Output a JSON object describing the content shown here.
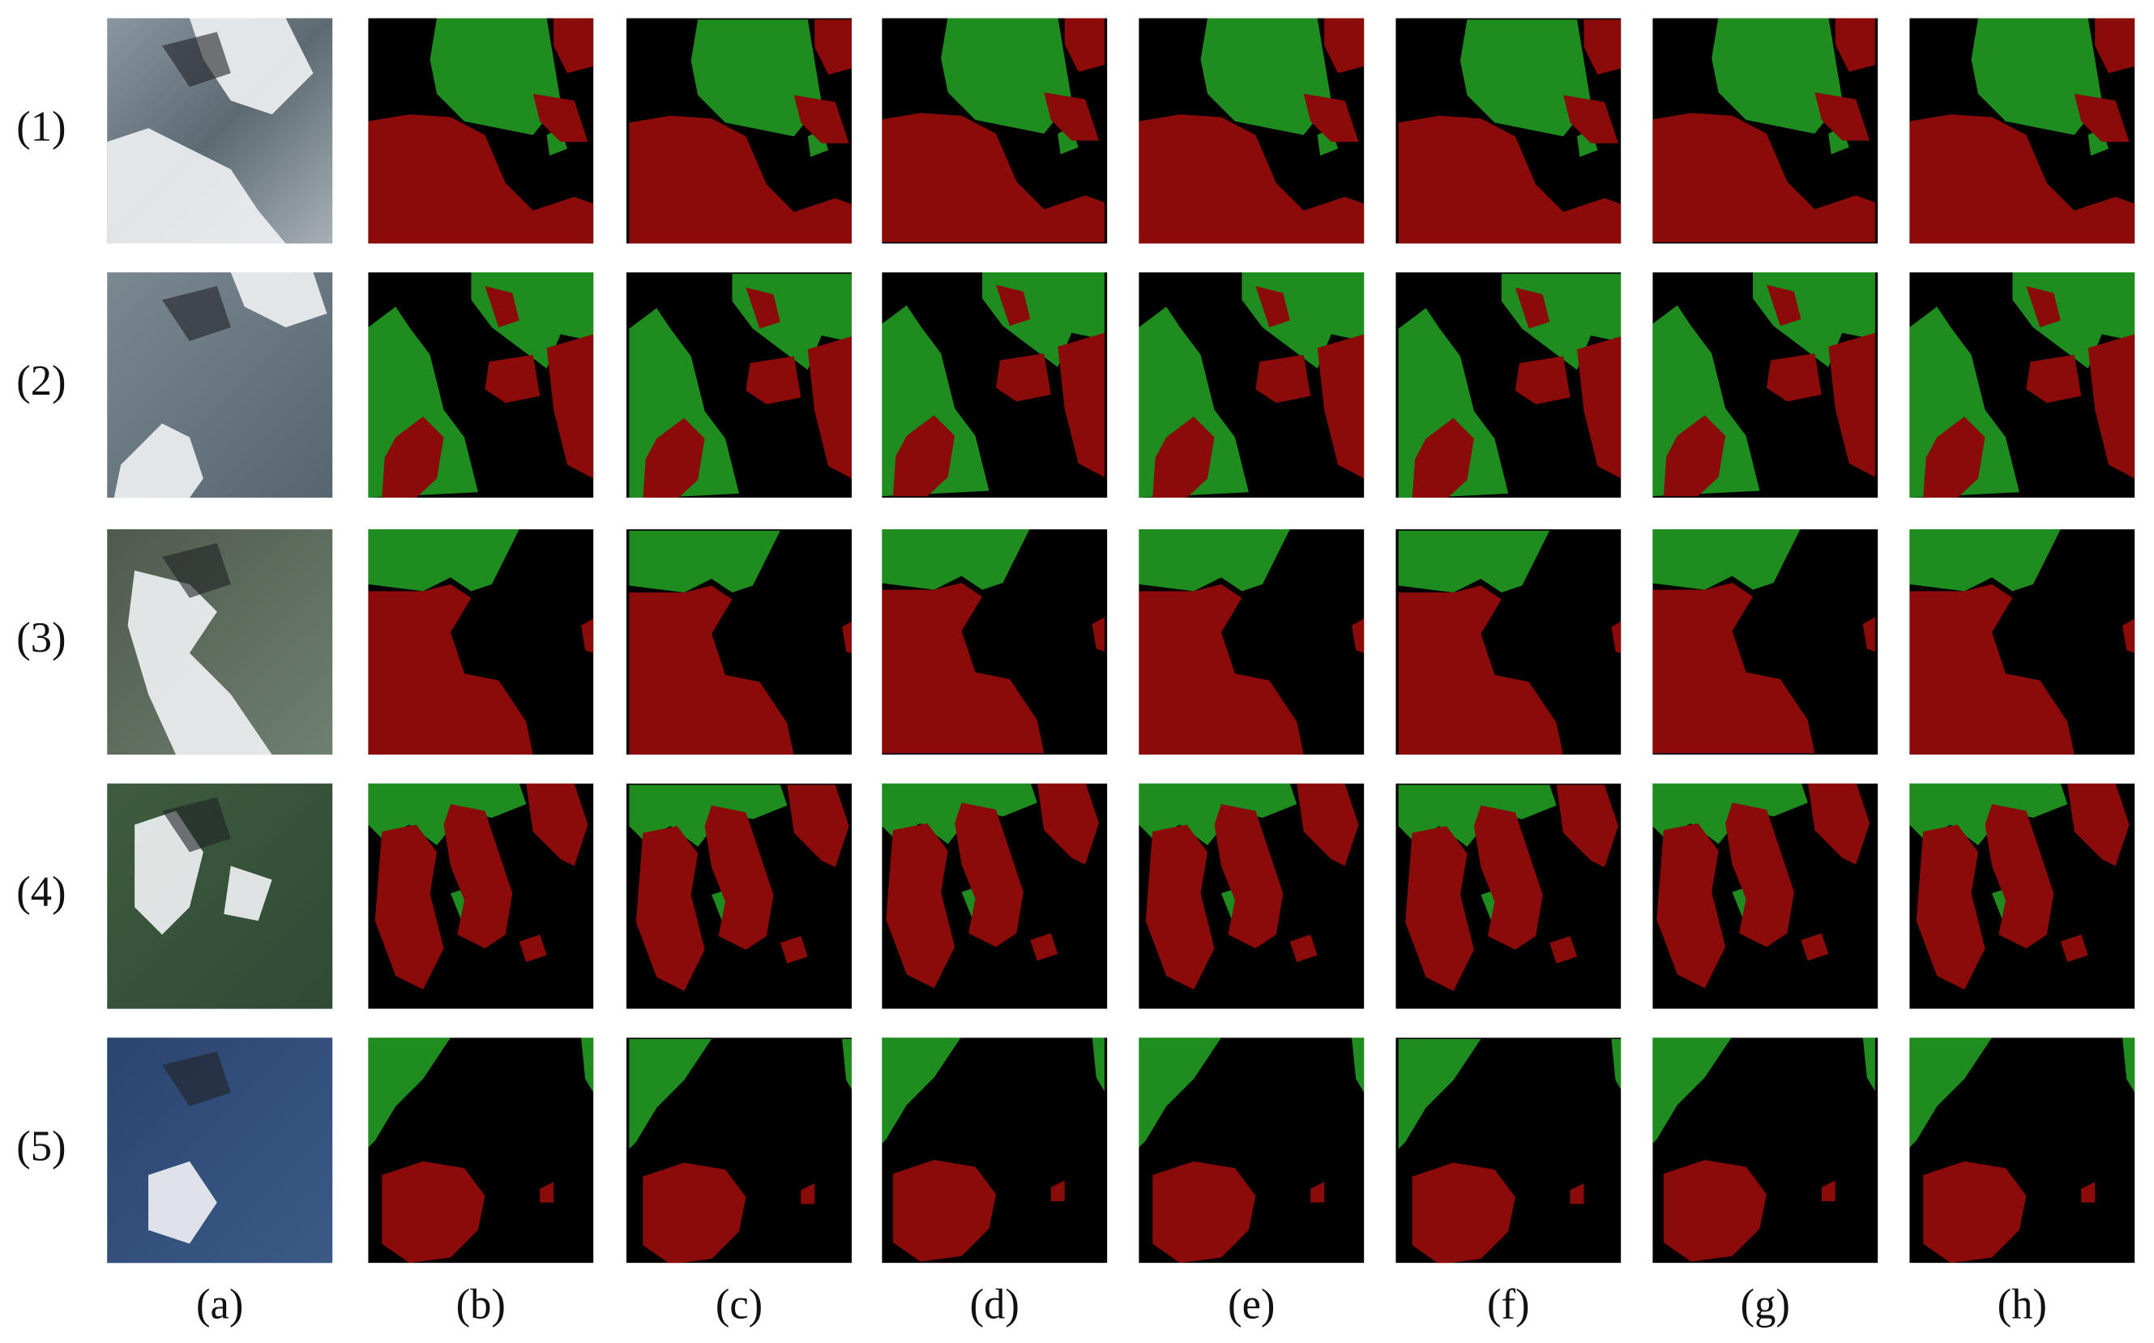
{
  "row_labels": [
    "(1)",
    "(2)",
    "(3)",
    "(4)",
    "(5)"
  ],
  "column_labels": [
    "(a)",
    "(b)",
    "(c)",
    "(d)",
    "(e)",
    "(f)",
    "(g)",
    "(h)"
  ]
}
